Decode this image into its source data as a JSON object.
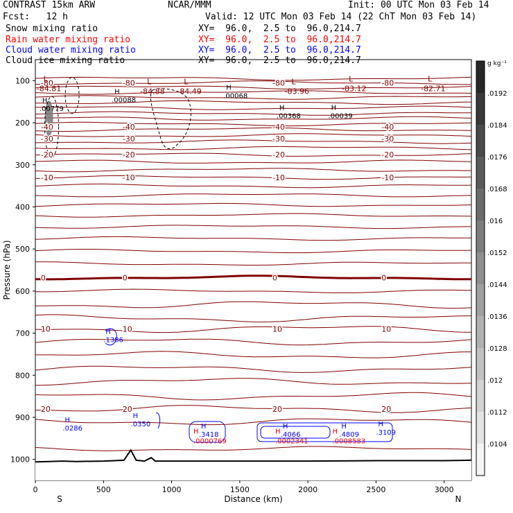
{
  "header": {
    "model": "CONTRAST 15km ARW",
    "center": "NCAR/MMM",
    "init": "Init: 00 UTC Mon 03 Feb 14",
    "fcst": "Fcst:   12 h",
    "valid": "Valid: 12 UTC Mon 03 Feb 14 (22 ChT Mon 03 Feb 14)",
    "fields": [
      {
        "name": "Snow mixing ratio",
        "xy": "XY=  96.0,  2.5 to  96.0,214.7",
        "color": "#000000"
      },
      {
        "name": "Rain water mixing ratio",
        "xy": "XY=  96.0,  2.5 to  96.0,214.7",
        "color": "#ff0000"
      },
      {
        "name": "Cloud water mixing ratio",
        "xy": "XY=  96.0,  2.5 to  96.0,214.7",
        "color": "#0000ff"
      },
      {
        "name": "Cloud ice mixing ratio",
        "xy": "XY=  96.0,  2.5 to  96.0,214.7",
        "color": "#000000"
      }
    ]
  },
  "chart_data": {
    "type": "cross-section contour",
    "xlabel": "Distance (km)",
    "ylabel": "Pressure (hPa)",
    "xlim": [
      0,
      3200
    ],
    "ylim": [
      1050,
      50
    ],
    "x_ticks": [
      0,
      500,
      1000,
      1500,
      2000,
      2500,
      3000
    ],
    "y_ticks": [
      100,
      200,
      300,
      400,
      500,
      600,
      700,
      800,
      900,
      1000
    ],
    "endpoints": {
      "left": "S",
      "right": "N"
    },
    "colorbar": {
      "unit": "g kg⁻¹",
      "ticks": [
        ".0192",
        ".0184",
        ".0176",
        ".0168",
        ".016",
        ".0152",
        ".0144",
        ".0136",
        ".0128",
        ".012",
        ".0112",
        ".0104"
      ]
    },
    "temperature_contours": [
      {
        "label": "-80",
        "p": 105
      },
      {
        "label": "-40",
        "p": 210
      },
      {
        "label": "-30",
        "p": 238
      },
      {
        "label": "-20",
        "p": 276
      },
      {
        "label": "-10",
        "p": 330
      },
      {
        "label": "0",
        "p": 568
      },
      {
        "label": "10",
        "p": 690
      },
      {
        "label": "20",
        "p": 880
      }
    ],
    "lows": [
      {
        "value": "-84.81",
        "x": 60,
        "p": 112
      },
      {
        "value": "-84.88",
        "x": 820,
        "p": 118
      },
      {
        "value": "-84.49",
        "x": 1090,
        "p": 118
      },
      {
        "value": "-83.96",
        "x": 1880,
        "p": 118
      },
      {
        "value": "-83.12",
        "x": 2300,
        "p": 112
      },
      {
        "value": "-82.71",
        "x": 2880,
        "p": 112
      }
    ],
    "snow_highs": [
      {
        "value": ".00779",
        "x": 30,
        "p": 165
      },
      {
        "value": ".00088",
        "x": 560,
        "p": 145
      },
      {
        "value": ".00068",
        "x": 1380,
        "p": 135
      },
      {
        "value": ".00368",
        "x": 1770,
        "p": 183
      },
      {
        "value": ".00039",
        "x": 2150,
        "p": 183
      }
    ],
    "cloud_water_highs": [
      {
        "value": ".1386",
        "x": 500,
        "p": 715
      },
      {
        "value": ".0286",
        "x": 200,
        "p": 925
      },
      {
        "value": ".0350",
        "x": 700,
        "p": 915
      },
      {
        "value": ".3418",
        "x": 1200,
        "p": 940
      },
      {
        "value": ".4066",
        "x": 1800,
        "p": 940
      },
      {
        "value": ".4809",
        "x": 2230,
        "p": 940
      },
      {
        "value": ".3109",
        "x": 2500,
        "p": 935
      }
    ],
    "rain_highs": [
      {
        "value": ".0000769",
        "x": 1160,
        "p": 955
      },
      {
        "value": ".0002341",
        "x": 1760,
        "p": 955
      },
      {
        "value": ".0008583",
        "x": 2180,
        "p": 955
      }
    ]
  }
}
